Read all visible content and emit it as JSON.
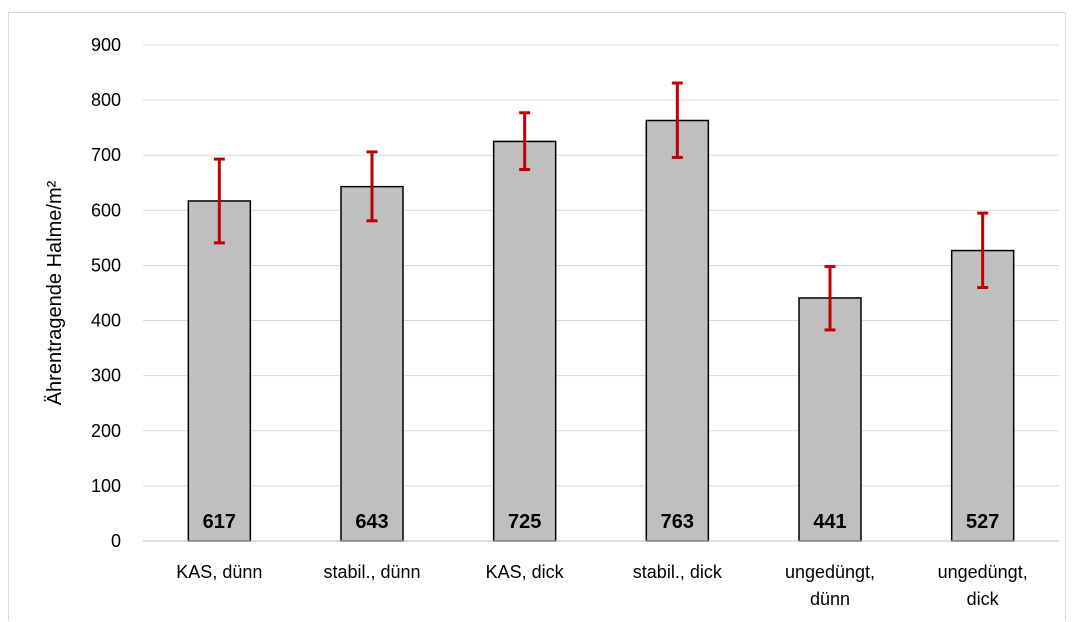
{
  "chart_data": {
    "type": "bar",
    "categories": [
      [
        "KAS, dünn"
      ],
      [
        "stabil., dünn"
      ],
      [
        "KAS, dick"
      ],
      [
        "stabil., dick"
      ],
      [
        "ungedüngt,",
        "dünn"
      ],
      [
        "ungedüngt,",
        "dick"
      ]
    ],
    "values": [
      617,
      643,
      725,
      763,
      441,
      527
    ],
    "error_low": [
      541,
      581,
      674,
      696,
      383,
      460
    ],
    "error_high": [
      693,
      706,
      777,
      831,
      498,
      595
    ],
    "data_labels": [
      "617",
      "643",
      "725",
      "763",
      "441",
      "527"
    ],
    "title": "",
    "xlabel": "",
    "ylabel": "Ährentragende Halme/m²",
    "ylim": [
      0,
      900
    ],
    "yticks": [
      "0",
      "100",
      "200",
      "300",
      "400",
      "500",
      "600",
      "700",
      "800",
      "900"
    ],
    "grid": true,
    "legend": "none",
    "colors": {
      "bar_fill": "#bfbfbf",
      "bar_stroke": "#000000",
      "error_bar": "#c00000",
      "grid": "#d9d9d9"
    }
  }
}
